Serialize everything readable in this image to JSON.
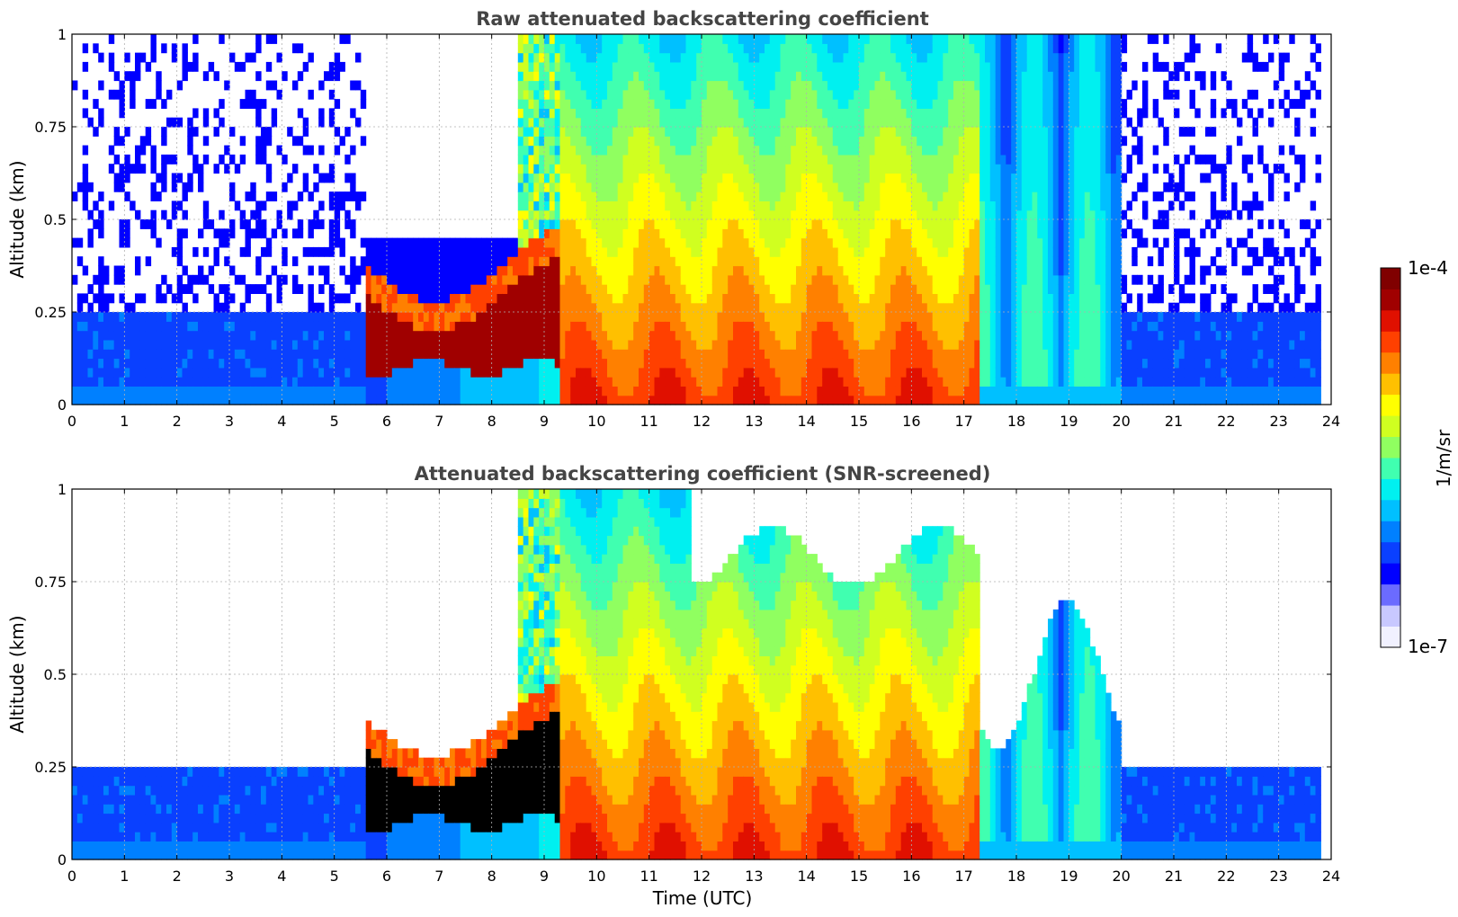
{
  "chart_data": [
    {
      "type": "heatmap",
      "title": "Raw attenuated backscattering coefficient",
      "xlabel": "",
      "ylabel": "Altitude (km)",
      "xlim": [
        0,
        24
      ],
      "ylim": [
        0,
        1
      ],
      "x_ticks": [
        "0",
        "1",
        "2",
        "3",
        "4",
        "5",
        "6",
        "7",
        "8",
        "9",
        "10",
        "11",
        "12",
        "13",
        "14",
        "15",
        "16",
        "17",
        "18",
        "19",
        "20",
        "21",
        "22",
        "23",
        "24"
      ],
      "y_ticks": [
        "0",
        "0.25",
        "0.5",
        "0.75",
        "1"
      ],
      "grid": true,
      "colorscale": "jet (white at low end)",
      "value_range": [
        "1e-7",
        "1e-4"
      ],
      "features": [
        {
          "x_range": [
            0,
            5.6
          ],
          "description": "noisy low-signal region; moderate backscatter below ~0.3 km"
        },
        {
          "x_range": [
            5.6,
            9.7
          ],
          "description": "aerosol/cloud layer 0.1–0.3 km with saturated peak"
        },
        {
          "x_range": [
            9.3,
            17.3
          ],
          "description": "high backscatter (orange/yellow/green) throughout 0–1 km"
        },
        {
          "x_range": [
            17.3,
            20
          ],
          "description": "decaying signal with vertical plumes"
        },
        {
          "x_range": [
            20,
            23.8
          ],
          "description": "noisy low-signal region; moderate backscatter below ~0.25 km"
        }
      ]
    },
    {
      "type": "heatmap",
      "title": "Attenuated backscattering coefficient (SNR-screened)",
      "xlabel": "Time (UTC)",
      "ylabel": "Altitude (km)",
      "xlim": [
        0,
        24
      ],
      "ylim": [
        0,
        1
      ],
      "x_ticks": [
        "0",
        "1",
        "2",
        "3",
        "4",
        "5",
        "6",
        "7",
        "8",
        "9",
        "10",
        "11",
        "12",
        "13",
        "14",
        "15",
        "16",
        "17",
        "18",
        "19",
        "20",
        "21",
        "22",
        "23",
        "24"
      ],
      "y_ticks": [
        "0",
        "0.25",
        "0.5",
        "0.75",
        "1"
      ],
      "grid": true,
      "colorscale": "jet (white at low end)",
      "value_range": [
        "1e-7",
        "1e-4"
      ],
      "screened_boundary": [
        {
          "x": 0,
          "top": 0.22
        },
        {
          "x": 0.8,
          "top": 0.23
        },
        {
          "x": 2.5,
          "top": 0.24
        },
        {
          "x": 4.0,
          "top": 0.26
        },
        {
          "x": 5.0,
          "top": 0.3
        },
        {
          "x": 5.6,
          "top": 0.36
        },
        {
          "x": 20.0,
          "top": 0.245
        },
        {
          "x": 23.8,
          "top": 0.245
        }
      ],
      "features": [
        {
          "x_range": [
            5.6,
            9.7
          ],
          "description": "black (saturated) layer 0.1–0.3 km"
        },
        {
          "x_range": [
            9.3,
            17.3
          ],
          "description": "high backscatter up to ~0.8–1 km"
        },
        {
          "x_range": [
            17.3,
            20
          ],
          "description": "plumes up to ~0.5–0.8 km"
        }
      ]
    }
  ],
  "colorbar": {
    "label": "1/m/sr",
    "max_label": "1e-4",
    "min_label": "1e-7",
    "colors": [
      "#f1f1ff",
      "#c8c8ff",
      "#6b6bff",
      "#0000ff",
      "#0a40ff",
      "#0080ff",
      "#00c0ff",
      "#00f0f0",
      "#40ffb0",
      "#90ff60",
      "#d0ff20",
      "#ffff00",
      "#ffc000",
      "#ff8000",
      "#ff4000",
      "#e01000",
      "#a00000",
      "#800000"
    ]
  }
}
